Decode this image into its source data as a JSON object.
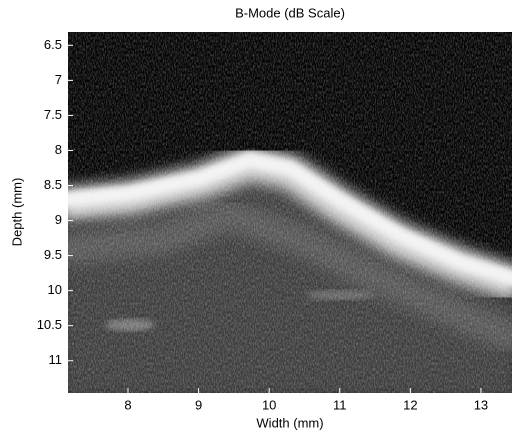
{
  "chart_data": {
    "type": "image",
    "title": "B-Mode (dB Scale)",
    "x_label": "Width (mm)",
    "y_label": "Depth (mm)",
    "xlim": [
      7.15,
      13.44
    ],
    "xticks": [
      8,
      9,
      10,
      11,
      12,
      13
    ],
    "ylim": [
      6.31,
      11.46
    ],
    "y_inverted": true,
    "yticks": [
      6.5,
      7,
      7.5,
      8,
      8.5,
      9,
      9.5,
      10,
      10.5,
      11
    ],
    "colormap": "gray"
  }
}
